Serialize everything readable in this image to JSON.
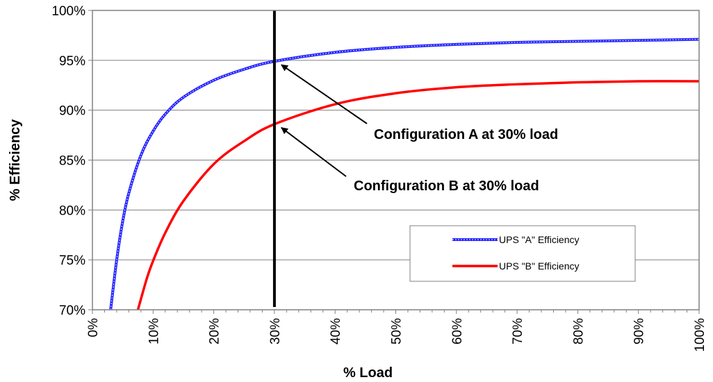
{
  "chart_data": {
    "type": "line",
    "xlabel": "% Load",
    "ylabel": "% Efficiency",
    "xlim": [
      0,
      100
    ],
    "ylim": [
      70,
      100
    ],
    "x_ticks": [
      0,
      10,
      20,
      30,
      40,
      50,
      60,
      70,
      80,
      90,
      100
    ],
    "y_ticks": [
      70,
      75,
      80,
      85,
      90,
      95,
      100
    ],
    "x_tick_labels": [
      "0%",
      "10%",
      "20%",
      "30%",
      "40%",
      "50%",
      "60%",
      "70%",
      "80%",
      "90%",
      "100%"
    ],
    "y_tick_labels": [
      "70%",
      "75%",
      "80%",
      "85%",
      "90%",
      "95%",
      "100%"
    ],
    "grid": "horizontal",
    "legend_position": "lower-right",
    "series": [
      {
        "name": "UPS \"A\" Efficiency",
        "color": "#1f1fff",
        "style": "dotted-blue",
        "x": [
          3,
          4,
          5,
          6,
          8,
          10,
          12,
          15,
          20,
          25,
          30,
          40,
          50,
          60,
          70,
          80,
          90,
          100
        ],
        "y": [
          70.0,
          75.0,
          78.9,
          81.7,
          85.5,
          87.9,
          89.6,
          91.3,
          93.0,
          94.1,
          94.9,
          95.8,
          96.3,
          96.6,
          96.8,
          96.9,
          97.0,
          97.1
        ]
      },
      {
        "name": "UPS \"B\" Efficiency",
        "color": "#ff0000",
        "style": "solid",
        "x": [
          7.5,
          9,
          10,
          12,
          15,
          20,
          25,
          30,
          40,
          50,
          60,
          70,
          80,
          90,
          100
        ],
        "y": [
          70.0,
          73.2,
          74.9,
          77.7,
          80.9,
          84.6,
          86.9,
          88.6,
          90.6,
          91.7,
          92.3,
          92.6,
          92.8,
          92.9,
          92.9
        ]
      }
    ],
    "vertical_line": {
      "x": 30,
      "color": "#000000"
    },
    "annotations": [
      {
        "text": "Configuration A at 30% load",
        "point_x": 30,
        "point_y": 94.9
      },
      {
        "text": "Configuration B at 30% load",
        "point_x": 30,
        "point_y": 88.6
      }
    ]
  }
}
